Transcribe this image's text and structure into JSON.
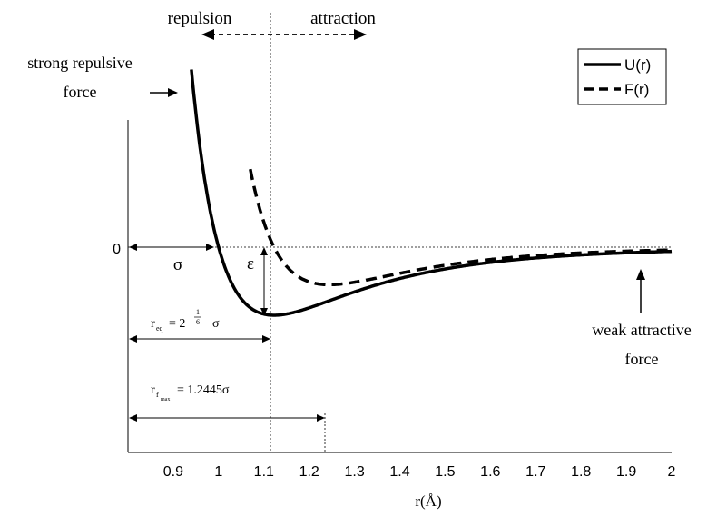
{
  "chart_data": {
    "type": "line",
    "xlabel": "r(Å)",
    "x_ticks": [
      "0.9",
      "1",
      "1.1",
      "1.2",
      "1.3",
      "1.4",
      "1.5",
      "1.6",
      "1.7",
      "1.8",
      "1.9",
      "2"
    ],
    "xlim": [
      0.8,
      2.0
    ],
    "ylim": [
      -2.6,
      4.6
    ],
    "y_ticks": [
      "0"
    ],
    "grid": false,
    "legend": {
      "position": "top-right",
      "entries": [
        "U(r)",
        "F(r)"
      ]
    },
    "sigma": 1.0,
    "series": [
      {
        "name": "U(r)",
        "style": "solid",
        "color": "#000000",
        "x_start": 0.94,
        "x_end": 2.0
      },
      {
        "name": "F(r)",
        "style": "dashed",
        "color": "#000000",
        "x_start": 1.07,
        "x_end": 2.0
      }
    ],
    "annotations": {
      "repulsion": "repulsion",
      "attraction": "attraction",
      "strong_repulsive_1": "strong repulsive",
      "strong_repulsive_2": "force",
      "weak_attractive_1": "weak attractive",
      "weak_attractive_2": "force",
      "sigma": "σ",
      "epsilon": "ε",
      "req_label": "r",
      "req_sub": "eq",
      "req_eq": "= 2",
      "req_frac_num": "1",
      "req_frac_den": "6",
      "req_sigma": "σ",
      "rfmax_label": "r",
      "rfmax_sub1": "f",
      "rfmax_sub2": "max",
      "rfmax_eq": "= 1.2445σ"
    }
  }
}
